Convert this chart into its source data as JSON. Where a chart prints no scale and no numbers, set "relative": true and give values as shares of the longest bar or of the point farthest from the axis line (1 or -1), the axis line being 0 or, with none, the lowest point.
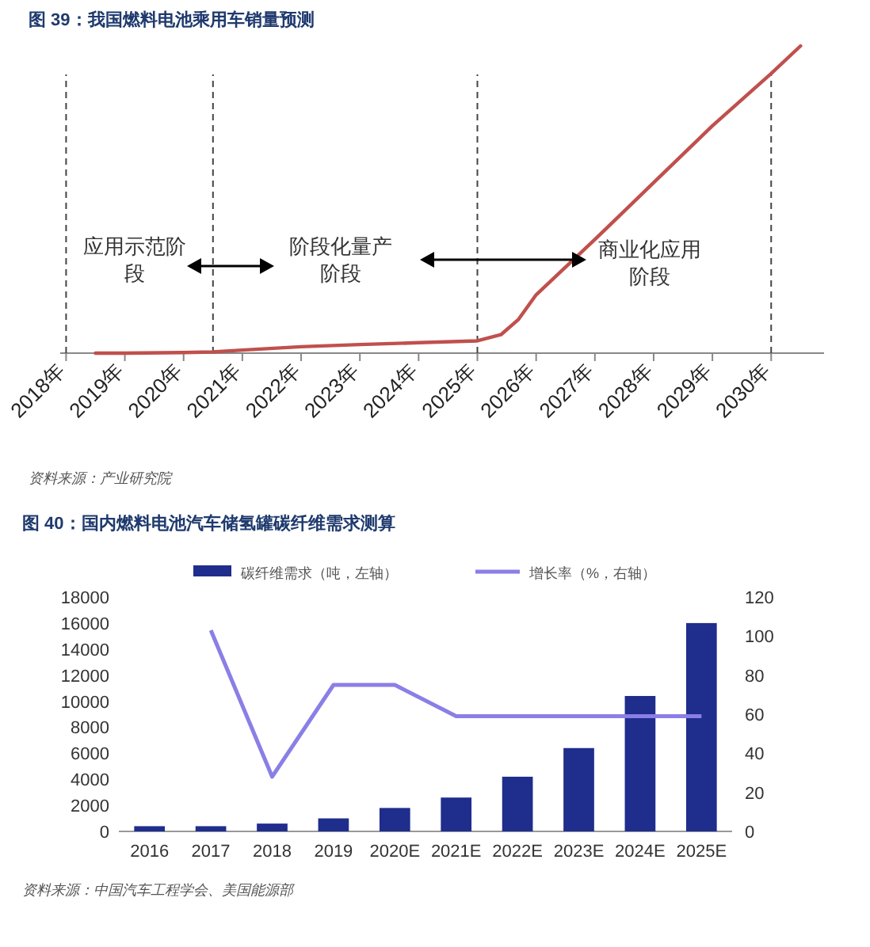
{
  "chart_data": [
    {
      "type": "line",
      "title": "图 39：我国燃料电池乘用车销量预测",
      "relative": true,
      "x": [
        2018.5,
        2019,
        2020,
        2020.5,
        2021,
        2022,
        2023,
        2024,
        2025,
        2025.4,
        2025.7,
        2026,
        2027,
        2028,
        2029,
        2030,
        2030.5
      ],
      "values": [
        0,
        0,
        0.002,
        0.004,
        0.01,
        0.021,
        0.028,
        0.034,
        0.04,
        0.06,
        0.11,
        0.19,
        0.37,
        0.555,
        0.74,
        0.91,
        1.0
      ],
      "color": "#c0504d",
      "xlim": [
        2017.9,
        2030.9
      ],
      "xticks": [
        {
          "value": 2018,
          "label": "2018年"
        },
        {
          "value": 2019,
          "label": "2019年"
        },
        {
          "value": 2020,
          "label": "2020年"
        },
        {
          "value": 2021,
          "label": "2021年"
        },
        {
          "value": 2022,
          "label": "2022年"
        },
        {
          "value": 2023,
          "label": "2023年"
        },
        {
          "value": 2024,
          "label": "2024年"
        },
        {
          "value": 2025,
          "label": "2025年"
        },
        {
          "value": 2026,
          "label": "2026年"
        },
        {
          "value": 2027,
          "label": "2027年"
        },
        {
          "value": 2028,
          "label": "2028年"
        },
        {
          "value": 2029,
          "label": "2029年"
        },
        {
          "value": 2030,
          "label": "2030年"
        }
      ],
      "ref_lines": [
        {
          "axis": "x",
          "value": 2018,
          "line_style": "dashed",
          "color": "#444444"
        },
        {
          "axis": "x",
          "value": 2020.5,
          "line_style": "dashed",
          "color": "#444444"
        },
        {
          "axis": "x",
          "value": 2025,
          "line_style": "dashed",
          "color": "#444444"
        },
        {
          "axis": "x",
          "value": 2030,
          "line_style": "dashed",
          "color": "#444444"
        }
      ],
      "annotations": [
        "应用示范阶段",
        "阶段化量产阶段",
        "商业化应用阶段",
        "资料来源：产业研究院"
      ],
      "grid": false
    },
    {
      "type": "bar",
      "title": "图 40：国内燃料电池汽车储氢罐碳纤维需求测算",
      "categories": [
        "2016",
        "2017",
        "2018",
        "2019",
        "2020E",
        "2021E",
        "2022E",
        "2023E",
        "2024E",
        "2025E"
      ],
      "series": [
        {
          "name": "碳纤维需求（吨，左轴）",
          "type": "bar",
          "color": "#1f2d8c",
          "values": [
            400,
            400,
            600,
            1000,
            1800,
            2600,
            4200,
            6400,
            10400,
            16000
          ]
        },
        {
          "name": "增长率（%，右轴）",
          "type": "line",
          "axis": "y2",
          "color": "#8a7fe6",
          "values": [
            null,
            103,
            28,
            75,
            75,
            59,
            59,
            59,
            59,
            59
          ]
        }
      ],
      "ylim": [
        0,
        18000
      ],
      "yticks": [
        0,
        2000,
        4000,
        6000,
        8000,
        10000,
        12000,
        14000,
        16000,
        18000
      ],
      "y2lim": [
        0,
        120
      ],
      "y2ticks": [
        0,
        20,
        40,
        60,
        80,
        100,
        120
      ],
      "annotations": [
        "资料来源：中国汽车工程学会、美国能源部"
      ],
      "grid": false,
      "legend": "top"
    }
  ]
}
